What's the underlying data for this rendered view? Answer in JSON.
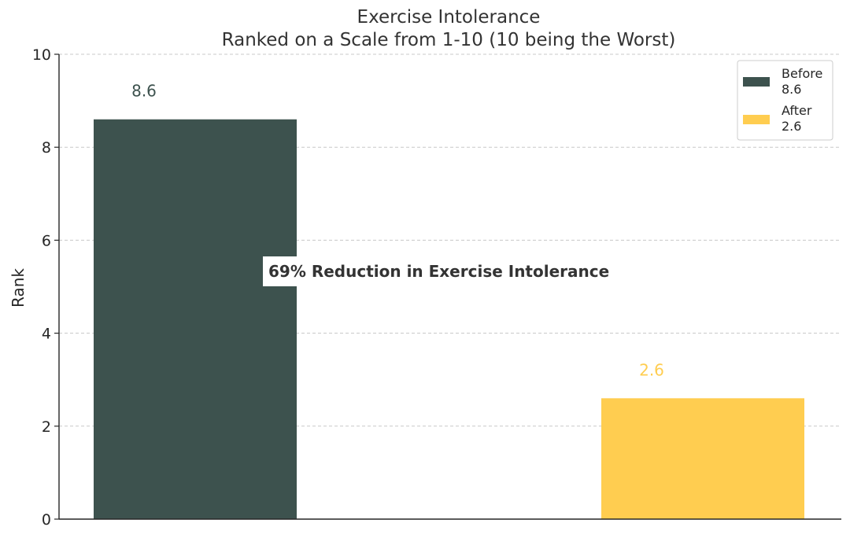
{
  "chart_data": {
    "type": "bar",
    "title": "Exercise Intolerance",
    "subtitle": "Ranked on a Scale from 1-10 (10 being the Worst)",
    "xlabel": "",
    "ylabel": "Rank",
    "ylim": [
      0,
      10
    ],
    "yticks": [
      "0",
      "2",
      "4",
      "6",
      "8",
      "10"
    ],
    "categories": [
      "Before",
      "After"
    ],
    "values": [
      8.6,
      2.6
    ],
    "data_labels": [
      "8.6",
      "2.6"
    ],
    "colors": [
      "#3d524e",
      "#ffcd50"
    ],
    "grid": true,
    "legend": {
      "placement": "top-right",
      "entries": [
        {
          "label": "Before",
          "value": "8.6",
          "color": "#3d524e"
        },
        {
          "label": "After",
          "value": "2.6",
          "color": "#ffcd50"
        }
      ]
    },
    "annotation": "69% Reduction in Exercise Intolerance"
  }
}
